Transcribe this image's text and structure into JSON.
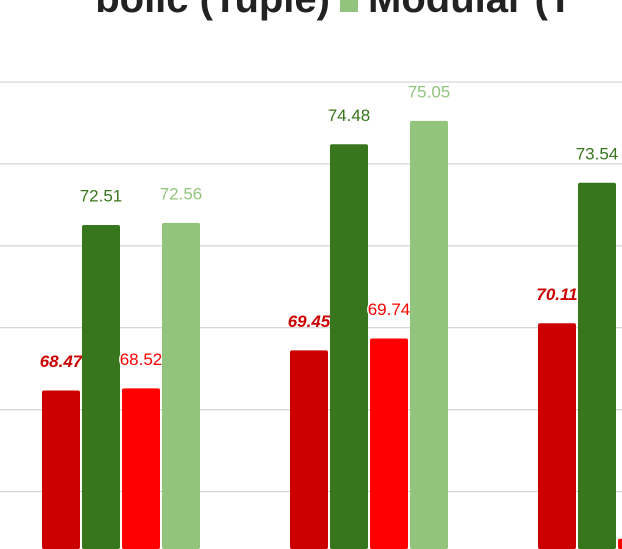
{
  "chart_data": {
    "type": "bar",
    "legend_position": "top",
    "categories": [
      null,
      null,
      null
    ],
    "series": [
      {
        "name": "bolic (Tuple)",
        "color": "#cc0000",
        "values": [
          68.47,
          69.45,
          70.11
        ]
      },
      {
        "name": "",
        "color": "#38761d",
        "values": [
          72.51,
          74.48,
          73.54
        ]
      },
      {
        "name": "",
        "color": "#ff0000",
        "values": [
          68.52,
          69.74,
          64.85
        ]
      },
      {
        "name": "Modular (T",
        "color": "#93c47d",
        "values": [
          72.56,
          75.05,
          null
        ]
      }
    ],
    "ylim": [
      64.6,
      76
    ],
    "yticks": [
      66,
      68,
      70,
      72,
      74,
      76
    ],
    "grid": true
  }
}
